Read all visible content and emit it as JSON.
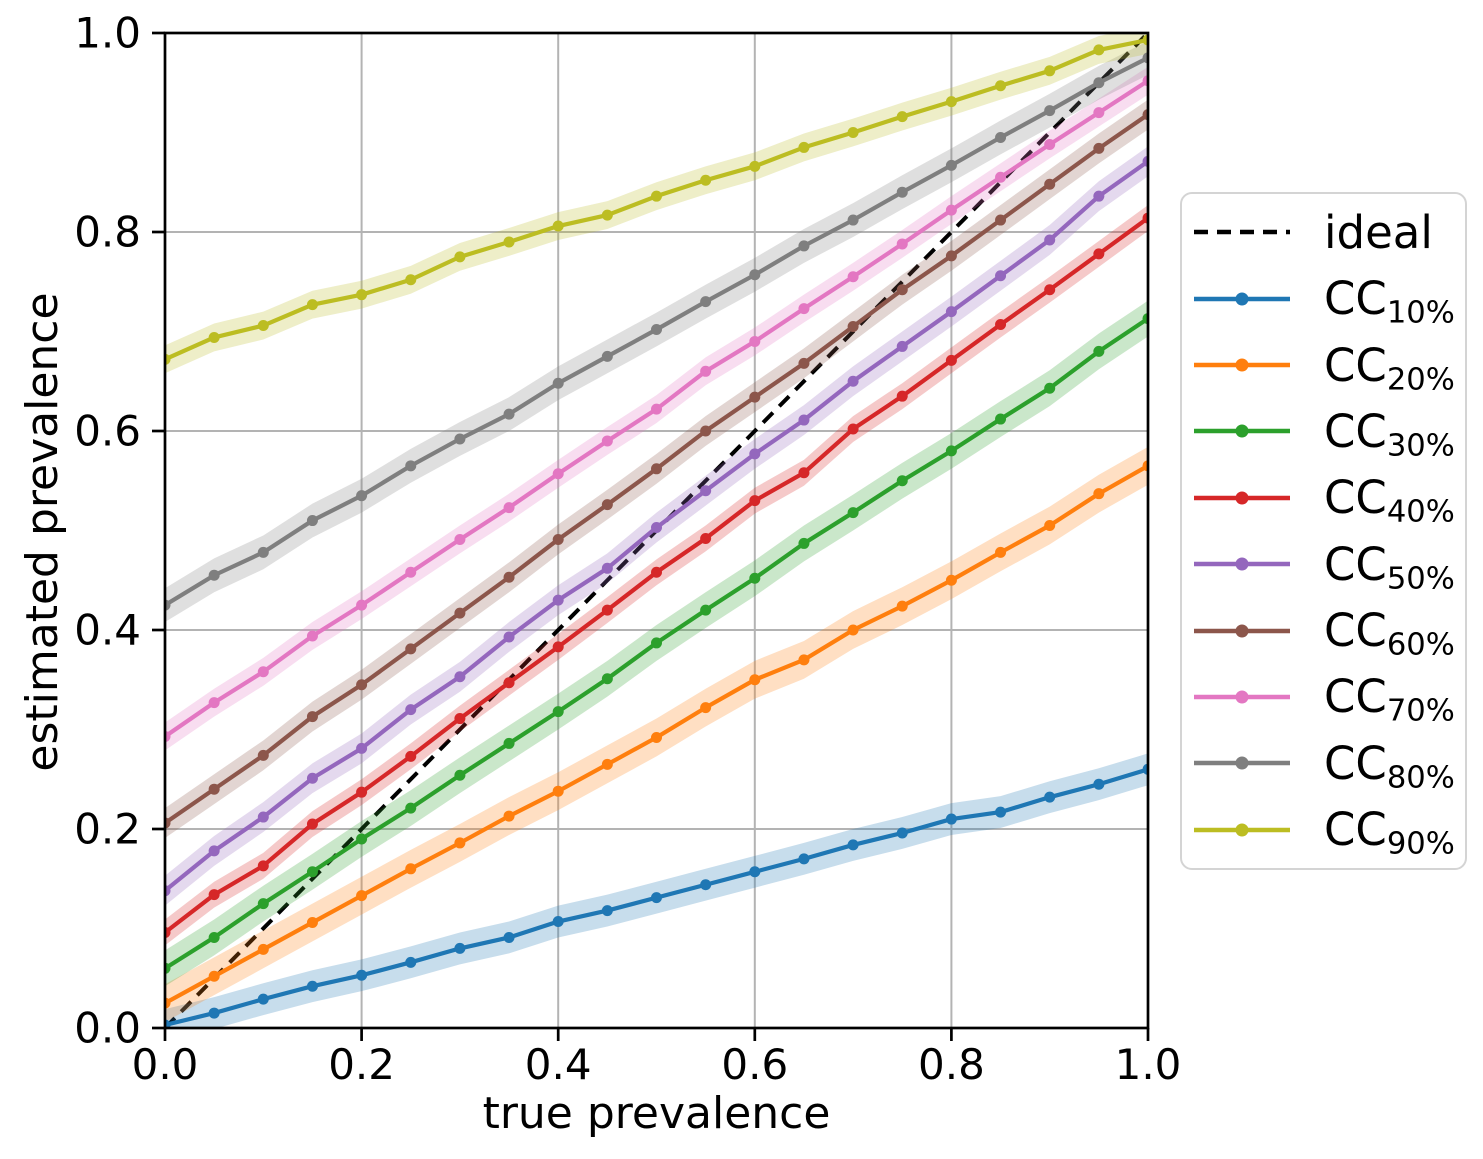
{
  "chart_data": {
    "type": "line",
    "title": "",
    "xlabel": "true prevalence",
    "ylabel": "estimated prevalence",
    "xlim": [
      0.0,
      1.0
    ],
    "ylim": [
      0.0,
      1.0
    ],
    "xticks": [
      0.0,
      0.2,
      0.4,
      0.6,
      0.8,
      1.0
    ],
    "yticks": [
      0.0,
      0.2,
      0.4,
      0.6,
      0.8,
      1.0
    ],
    "xtick_labels": [
      "0.0",
      "0.2",
      "0.4",
      "0.6",
      "0.8",
      "1.0"
    ],
    "ytick_labels": [
      "0.0",
      "0.2",
      "0.4",
      "0.6",
      "0.8",
      "1.0"
    ],
    "grid": true,
    "legend_position": "outside-right",
    "x": [
      0.0,
      0.05,
      0.1,
      0.15,
      0.2,
      0.25,
      0.3,
      0.35,
      0.4,
      0.45,
      0.5,
      0.55,
      0.6,
      0.65,
      0.7,
      0.75,
      0.8,
      0.85,
      0.9,
      0.95,
      1.0
    ],
    "ideal": {
      "label": "ideal",
      "color": "#000000",
      "linestyle": "dashed",
      "x": [
        0.0,
        1.0
      ],
      "y": [
        0.0,
        1.0
      ]
    },
    "series": [
      {
        "id": "cc10",
        "name": "CC_10%",
        "label_main": "CC",
        "label_sub": "10%",
        "color": "#1f77b4",
        "band_halfwidth": 0.016,
        "values": [
          0.003,
          0.015,
          0.029,
          0.042,
          0.053,
          0.066,
          0.08,
          0.091,
          0.107,
          0.118,
          0.131,
          0.144,
          0.157,
          0.17,
          0.184,
          0.196,
          0.21,
          0.217,
          0.232,
          0.245,
          0.26
        ]
      },
      {
        "id": "cc20",
        "name": "CC_20%",
        "label_main": "CC",
        "label_sub": "20%",
        "color": "#ff7f0e",
        "band_halfwidth": 0.019,
        "values": [
          0.025,
          0.052,
          0.079,
          0.106,
          0.133,
          0.16,
          0.186,
          0.213,
          0.238,
          0.265,
          0.292,
          0.322,
          0.35,
          0.37,
          0.4,
          0.424,
          0.45,
          0.478,
          0.505,
          0.537,
          0.565
        ]
      },
      {
        "id": "cc30",
        "name": "CC_30%",
        "label_main": "CC",
        "label_sub": "30%",
        "color": "#2ca02c",
        "band_halfwidth": 0.018,
        "values": [
          0.06,
          0.091,
          0.125,
          0.157,
          0.19,
          0.221,
          0.254,
          0.286,
          0.318,
          0.351,
          0.387,
          0.42,
          0.452,
          0.487,
          0.518,
          0.55,
          0.58,
          0.612,
          0.643,
          0.68,
          0.713
        ]
      },
      {
        "id": "cc40",
        "name": "CC_40%",
        "label_main": "CC",
        "label_sub": "40%",
        "color": "#d62728",
        "band_halfwidth": 0.013,
        "values": [
          0.096,
          0.134,
          0.163,
          0.205,
          0.237,
          0.273,
          0.311,
          0.347,
          0.383,
          0.42,
          0.458,
          0.492,
          0.53,
          0.558,
          0.602,
          0.635,
          0.671,
          0.707,
          0.742,
          0.778,
          0.814
        ]
      },
      {
        "id": "cc50",
        "name": "CC_50%",
        "label_main": "CC",
        "label_sub": "50%",
        "color": "#9467bd",
        "band_halfwidth": 0.015,
        "values": [
          0.138,
          0.178,
          0.212,
          0.251,
          0.281,
          0.32,
          0.353,
          0.393,
          0.43,
          0.462,
          0.503,
          0.54,
          0.577,
          0.611,
          0.65,
          0.685,
          0.72,
          0.756,
          0.792,
          0.836,
          0.871
        ]
      },
      {
        "id": "cc60",
        "name": "CC_60%",
        "label_main": "CC",
        "label_sub": "60%",
        "color": "#8c564b",
        "band_halfwidth": 0.015,
        "values": [
          0.206,
          0.24,
          0.274,
          0.313,
          0.345,
          0.381,
          0.417,
          0.453,
          0.491,
          0.526,
          0.562,
          0.6,
          0.634,
          0.668,
          0.705,
          0.742,
          0.776,
          0.812,
          0.848,
          0.884,
          0.918
        ]
      },
      {
        "id": "cc70",
        "name": "CC_70%",
        "label_main": "CC",
        "label_sub": "70%",
        "color": "#e377c2",
        "band_halfwidth": 0.014,
        "values": [
          0.293,
          0.327,
          0.358,
          0.394,
          0.425,
          0.458,
          0.491,
          0.523,
          0.557,
          0.59,
          0.622,
          0.66,
          0.69,
          0.723,
          0.755,
          0.788,
          0.822,
          0.855,
          0.888,
          0.92,
          0.952
        ]
      },
      {
        "id": "cc80",
        "name": "CC_80%",
        "label_main": "CC",
        "label_sub": "80%",
        "color": "#7f7f7f",
        "band_halfwidth": 0.017,
        "values": [
          0.425,
          0.455,
          0.478,
          0.51,
          0.535,
          0.565,
          0.592,
          0.617,
          0.648,
          0.675,
          0.702,
          0.73,
          0.757,
          0.786,
          0.812,
          0.84,
          0.867,
          0.895,
          0.922,
          0.95,
          0.975
        ]
      },
      {
        "id": "cc90",
        "name": "CC_90%",
        "label_main": "CC",
        "label_sub": "90%",
        "color": "#bcbd22",
        "band_halfwidth": 0.014,
        "values": [
          0.672,
          0.694,
          0.706,
          0.727,
          0.737,
          0.752,
          0.775,
          0.79,
          0.806,
          0.817,
          0.836,
          0.852,
          0.866,
          0.885,
          0.9,
          0.916,
          0.931,
          0.947,
          0.962,
          0.983,
          0.993
        ]
      }
    ],
    "style": {
      "grid_color": "#b3b3b3",
      "spine_color": "#000000",
      "band_opacity": 0.25
    }
  }
}
